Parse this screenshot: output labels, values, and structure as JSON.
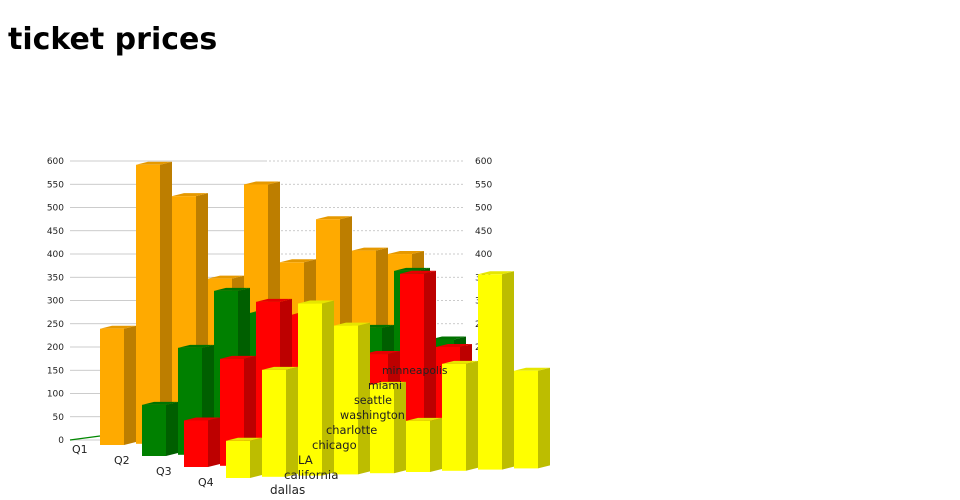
{
  "title": "ticket prices",
  "chart_data": {
    "type": "bar",
    "subtype": "3d-grouped",
    "title": "ticket prices",
    "categories": [
      "dallas",
      "california",
      "LA",
      "chicago",
      "charlotte",
      "washington",
      "seattle",
      "miami",
      "minneapolis"
    ],
    "series": [
      {
        "name": "Q1",
        "color": "#ffaa00",
        "values": [
          250,
          600,
          530,
          350,
          550,
          380,
          470,
          400,
          390
        ]
      },
      {
        "name": "Q2",
        "color": "#008000",
        "values": [
          110,
          230,
          350,
          300,
          280,
          240,
          260,
          380,
          230
        ]
      },
      {
        "name": "Q3",
        "color": "#ff0000",
        "values": [
          100,
          230,
          350,
          320,
          260,
          230,
          400,
          240,
          200
        ]
      },
      {
        "name": "Q4",
        "color": "#ffff00",
        "values": [
          80,
          230,
          370,
          320,
          190,
          110,
          230,
          420,
          210
        ]
      }
    ],
    "yticks": [
      0,
      50,
      100,
      150,
      200,
      250,
      300,
      350,
      400,
      450,
      500,
      550,
      600
    ],
    "ylim": [
      0,
      600
    ],
    "grid": true
  }
}
